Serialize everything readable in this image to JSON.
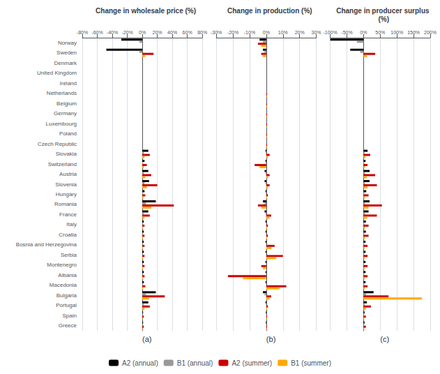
{
  "chart_data": [
    {
      "type": "bar",
      "orientation": "horizontal",
      "title": "Change in wholesale price (%)",
      "annotations": [
        "(a)"
      ],
      "grid": true,
      "legend": "bottom",
      "categories": [
        "Norway",
        "Sweden",
        "Denmark",
        "United Kingdom",
        "Ireland",
        "Netherlands",
        "Belgium",
        "Germany",
        "Luxembourg",
        "Poland",
        "Czech Republic",
        "Slovakia",
        "Switzerland",
        "Austria",
        "Slovenia",
        "Hungary",
        "Romania",
        "France",
        "Italy",
        "Croatia",
        "Bosnia and Herzegovina",
        "Serbia",
        "Montenegro",
        "Albania",
        "Macedonia",
        "Bulgaria",
        "Portugal",
        "Spain",
        "Greece"
      ],
      "xlim": [
        -80,
        80
      ],
      "xticks": [
        {
          "value": -80,
          "label": "-80%"
        },
        {
          "value": -60,
          "label": "-60%"
        },
        {
          "value": -40,
          "label": "-40%"
        },
        {
          "value": -20,
          "label": "-20%"
        },
        {
          "value": 0,
          "label": "0%"
        },
        {
          "value": 20,
          "label": "20%"
        },
        {
          "value": 40,
          "label": "40%"
        },
        {
          "value": 60,
          "label": "60%"
        },
        {
          "value": 80,
          "label": "80%"
        }
      ],
      "series": [
        {
          "name": "A2 (annual)",
          "color": "#000000",
          "values": [
            -28,
            -48,
            0,
            0,
            0,
            0,
            0,
            0,
            0,
            0,
            0,
            8,
            3,
            8,
            9,
            3,
            18,
            8,
            2,
            2,
            2,
            2,
            2,
            2,
            2,
            18,
            8,
            1,
            1
          ]
        },
        {
          "name": "B1 (annual)",
          "color": "#999999",
          "values": [
            -4,
            -4,
            0,
            0,
            0,
            0,
            0,
            0,
            0,
            0,
            0,
            2,
            1,
            2,
            3,
            1,
            5,
            2,
            0.5,
            0.5,
            0.5,
            0.5,
            0.5,
            0.5,
            0.5,
            5,
            2,
            0.3,
            0.3
          ]
        },
        {
          "name": "A2 (summer)",
          "color": "#cc0000",
          "values": [
            0,
            15,
            0,
            0,
            0,
            0,
            0,
            0,
            0,
            0,
            0,
            10,
            6,
            12,
            20,
            4,
            42,
            10,
            3,
            3,
            3,
            3,
            3,
            3,
            4,
            30,
            10,
            2,
            2
          ]
        },
        {
          "name": "B1 (summer)",
          "color": "#ffaa00",
          "values": [
            0,
            4,
            0,
            0,
            0,
            0,
            0,
            0,
            0,
            0,
            0,
            3,
            2,
            4,
            6,
            1.5,
            12,
            3,
            1,
            1,
            1,
            1,
            1,
            1,
            1,
            9,
            3,
            0.5,
            0.5
          ]
        }
      ]
    },
    {
      "type": "bar",
      "orientation": "horizontal",
      "title": "Change in production (%)",
      "annotations": [
        "(b)"
      ],
      "grid": true,
      "legend": "bottom",
      "tick_labels": "x",
      "categories": [
        "Norway",
        "Sweden",
        "Denmark",
        "United Kingdom",
        "Ireland",
        "Netherlands",
        "Belgium",
        "Germany",
        "Luxembourg",
        "Poland",
        "Czech Republic",
        "Slovakia",
        "Switzerland",
        "Austria",
        "Slovenia",
        "Hungary",
        "Romania",
        "France",
        "Italy",
        "Croatia",
        "Bosnia and Herzegovina",
        "Serbia",
        "Montenegro",
        "Albania",
        "Macedonia",
        "Bulgaria",
        "Portugal",
        "Spain",
        "Greece"
      ],
      "xlim": [
        -30,
        30
      ],
      "xticks": [
        {
          "value": -30,
          "label": "-30%"
        },
        {
          "value": -20,
          "label": "-20%"
        },
        {
          "value": -10,
          "label": "-10%"
        },
        {
          "value": 0,
          "label": "0%"
        },
        {
          "value": 10,
          "label": "10%"
        },
        {
          "value": 20,
          "label": "20%"
        },
        {
          "value": 30,
          "label": "30%"
        }
      ],
      "series": [
        {
          "name": "A2 (annual)",
          "color": "#000000",
          "values": [
            -4,
            -2,
            0,
            0,
            0,
            0,
            0,
            0,
            0,
            0,
            0,
            -0.5,
            -0.5,
            -1,
            -1,
            -0.5,
            -2,
            -1,
            -0.5,
            -0.5,
            -0.5,
            -0.5,
            -0.5,
            -0.5,
            -0.5,
            -2,
            -0.5,
            -0.3,
            -0.3
          ]
        },
        {
          "name": "B1 (annual)",
          "color": "#999999",
          "values": [
            -2,
            -1,
            0,
            0,
            0,
            0,
            0,
            0,
            0,
            0,
            0,
            -0.3,
            -0.3,
            -0.5,
            -0.5,
            -0.3,
            -1,
            -0.5,
            -0.2,
            -0.2,
            -0.2,
            -0.2,
            -0.2,
            -0.2,
            -0.2,
            -1,
            -0.2,
            -0.1,
            -0.1
          ]
        },
        {
          "name": "A2 (summer)",
          "color": "#cc0000",
          "values": [
            -5,
            -3,
            0,
            0,
            0,
            0.5,
            0.5,
            0.5,
            0.5,
            0.5,
            0.5,
            2,
            -7,
            2,
            2,
            1,
            -5,
            3,
            1,
            1,
            5,
            10,
            -3,
            -23,
            12,
            3,
            1,
            0.5,
            0.5
          ]
        },
        {
          "name": "B1 (summer)",
          "color": "#ffaa00",
          "values": [
            -3,
            -2,
            0,
            0,
            0,
            0.3,
            0.3,
            0.3,
            0.3,
            0.3,
            0.3,
            1,
            -4,
            1,
            1,
            0.5,
            -3,
            2,
            0.5,
            0.5,
            3,
            6,
            -2,
            -14,
            8,
            2,
            0.5,
            0.3,
            0.3
          ]
        }
      ]
    },
    {
      "type": "bar",
      "orientation": "horizontal",
      "title": "Change in producer surplus (%)",
      "annotations": [
        "(c)"
      ],
      "grid": true,
      "legend": "bottom",
      "tick_labels": "x",
      "categories": [
        "Norway",
        "Sweden",
        "Denmark",
        "United Kingdom",
        "Ireland",
        "Netherlands",
        "Belgium",
        "Germany",
        "Luxembourg",
        "Poland",
        "Czech Republic",
        "Slovakia",
        "Switzerland",
        "Austria",
        "Slovenia",
        "Hungary",
        "Romania",
        "France",
        "Italy",
        "Croatia",
        "Bosnia and Herzegovina",
        "Serbia",
        "Montenegro",
        "Albania",
        "Macedonia",
        "Bulgaria",
        "Portugal",
        "Spain",
        "Greece"
      ],
      "xlim": [
        -100,
        200
      ],
      "xticks": [
        {
          "value": -100,
          "label": "-100%"
        },
        {
          "value": -50,
          "label": "-50%"
        },
        {
          "value": 0,
          "label": "0%"
        },
        {
          "value": 50,
          "label": "50%"
        },
        {
          "value": 100,
          "label": "100%"
        },
        {
          "value": 150,
          "label": "150%"
        },
        {
          "value": 200,
          "label": "200%"
        }
      ],
      "series": [
        {
          "name": "A2 (annual)",
          "color": "#000000",
          "values": [
            -100,
            -40,
            0,
            0,
            0,
            0,
            0,
            0,
            0,
            0,
            0,
            12,
            6,
            18,
            18,
            8,
            18,
            15,
            7,
            7,
            6,
            6,
            6,
            6,
            6,
            30,
            10,
            3,
            3
          ]
        },
        {
          "name": "B1 (annual)",
          "color": "#999999",
          "values": [
            -20,
            -10,
            0,
            0,
            0,
            0,
            0,
            0,
            0,
            0,
            0,
            3,
            2,
            4,
            4,
            2,
            4,
            4,
            2,
            2,
            1.5,
            1.5,
            1.5,
            1.5,
            1.5,
            8,
            3,
            1,
            1
          ]
        },
        {
          "name": "A2 (summer)",
          "color": "#cc0000",
          "values": [
            0,
            35,
            0,
            0,
            0,
            0,
            0,
            0,
            0,
            0,
            0,
            20,
            12,
            35,
            40,
            15,
            55,
            40,
            15,
            15,
            12,
            12,
            12,
            12,
            12,
            75,
            22,
            7,
            7
          ]
        },
        {
          "name": "B1 (summer)",
          "color": "#ffaa00",
          "values": [
            0,
            10,
            0,
            0,
            0,
            0,
            0,
            0,
            0,
            0,
            0,
            6,
            4,
            10,
            12,
            4,
            15,
            11,
            4,
            4,
            3,
            3,
            3,
            3,
            3,
            175,
            7,
            2,
            2
          ]
        }
      ]
    }
  ]
}
